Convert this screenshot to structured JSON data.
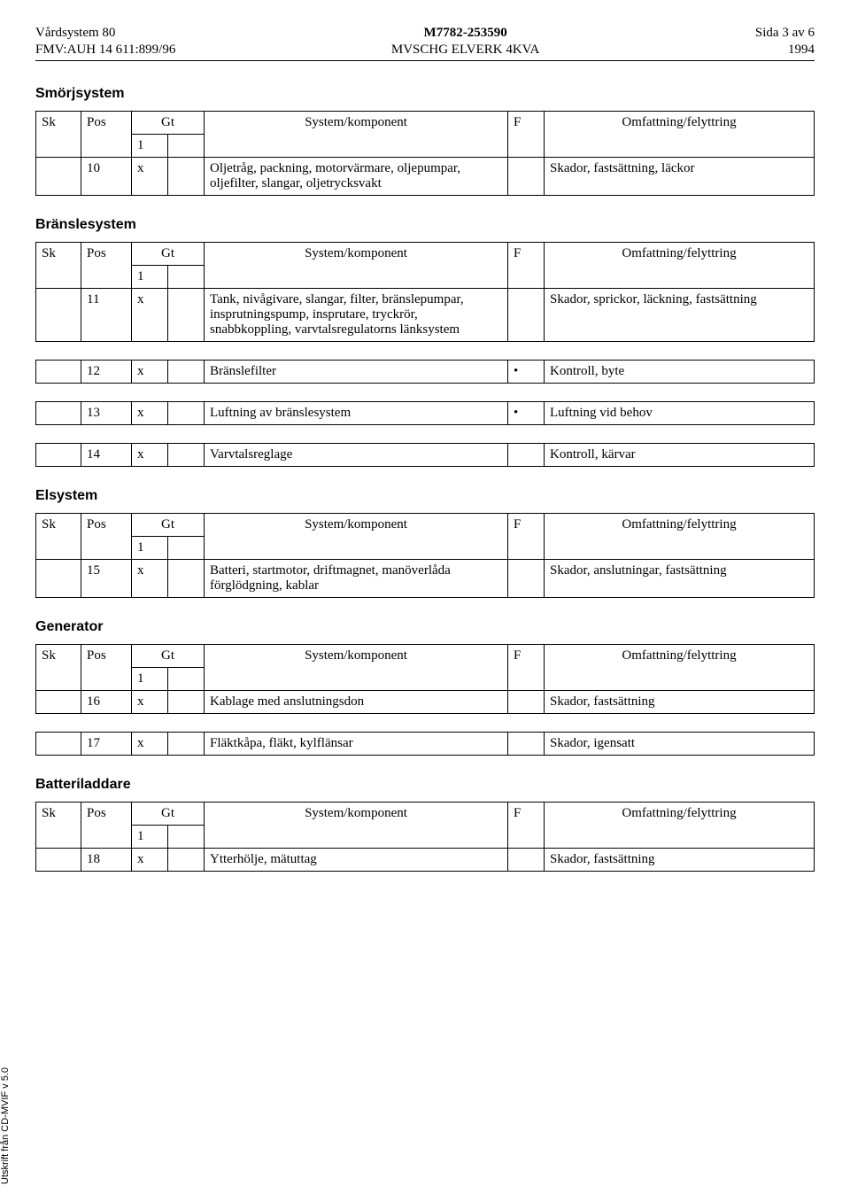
{
  "header": {
    "left1": "Vårdsystem 80",
    "left2": "FMV:AUH 14 611:899/96",
    "mid1": "M7782-253590",
    "mid2": "MVSCHG ELVERK 4KVA",
    "right1": "Sida 3 av 6",
    "right2": "1994"
  },
  "labels": {
    "sk": "Sk",
    "pos": "Pos",
    "gt": "Gt",
    "one": "1",
    "sys": "System/komponent",
    "f": "F",
    "ext": "Omfattning/felyttring"
  },
  "sections": [
    {
      "title": "Smörjsystem",
      "rows": [
        {
          "pos": "10",
          "gt1": "x",
          "gt2": "",
          "sys": "Oljetråg, packning, motorvärmare, oljepumpar, oljefilter, slangar, oljetrycksvakt",
          "f": "",
          "ext": "Skador, fastsättning, läckor"
        }
      ]
    },
    {
      "title": "Bränslesystem",
      "rows": [
        {
          "pos": "11",
          "gt1": "x",
          "gt2": "",
          "sys": "Tank, nivågivare, slangar, filter, bränslepumpar, insprutningspump, insprutare, tryckrör, snabbkoppling, varvtalsregulatorns länksystem",
          "f": "",
          "ext": "Skador, sprickor, läckning, fastsättning"
        },
        {
          "pos": "12",
          "gt1": "x",
          "gt2": "",
          "sys": "Bränslefilter",
          "f": "•",
          "ext": "Kontroll, byte"
        },
        {
          "pos": "13",
          "gt1": "x",
          "gt2": "",
          "sys": "Luftning av bränslesystem",
          "f": "•",
          "ext": "Luftning vid behov"
        },
        {
          "pos": "14",
          "gt1": "x",
          "gt2": "",
          "sys": "Varvtalsreglage",
          "f": "",
          "ext": "Kontroll, kärvar"
        }
      ]
    },
    {
      "title": "Elsystem",
      "rows": [
        {
          "pos": "15",
          "gt1": "x",
          "gt2": "",
          "sys": "Batteri, startmotor, driftmagnet, manöverlåda förglödgning, kablar",
          "f": "",
          "ext": "Skador, anslutningar, fastsättning"
        }
      ]
    },
    {
      "title": "Generator",
      "rows": [
        {
          "pos": "16",
          "gt1": "x",
          "gt2": "",
          "sys": "Kablage med anslutningsdon",
          "f": "",
          "ext": "Skador, fastsättning"
        },
        {
          "pos": "17",
          "gt1": "x",
          "gt2": "",
          "sys": "Fläktkåpa, fläkt, kylflänsar",
          "f": "",
          "ext": "Skador, igensatt"
        }
      ]
    },
    {
      "title": "Batteriladdare",
      "rows": [
        {
          "pos": "18",
          "gt1": "x",
          "gt2": "",
          "sys": "Ytterhölje, mätuttag",
          "f": "",
          "ext": "Skador, fastsättning"
        }
      ]
    }
  ],
  "sidebar": "Utskrift från CD-MVIF v 5.0"
}
